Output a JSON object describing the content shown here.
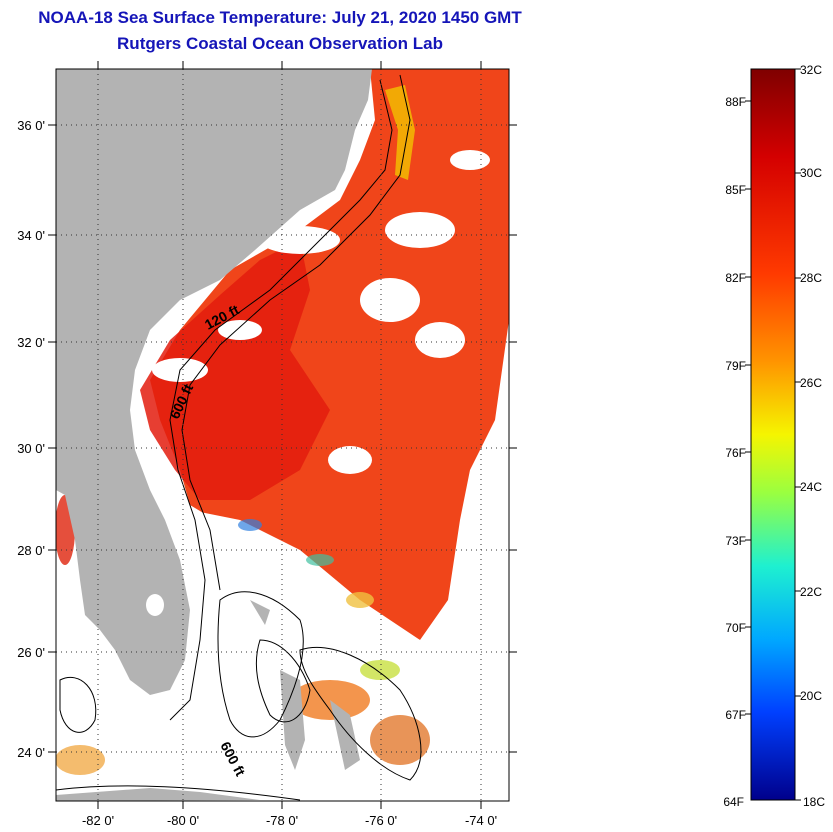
{
  "header": {
    "title": "NOAA-18 Sea Surface Temperature:  July 21, 2020 1450 GMT",
    "subtitle": "Rutgers Coastal Ocean Observation Lab"
  },
  "map": {
    "lat_ticks": [
      "36 0'",
      "34 0'",
      "32 0'",
      "30 0'",
      "28 0'",
      "26 0'",
      "24 0'"
    ],
    "lon_ticks": [
      "-82 0'",
      "-80 0'",
      "-78 0'",
      "-76 0'",
      "-74 0'"
    ],
    "contour_labels": [
      "120 ft",
      "600 ft",
      "600 ft"
    ],
    "colors": {
      "land": "#b3b3b3",
      "clouds": "#ffffff",
      "sea_warm": "#f0451a",
      "sea_hot": "#e61e10"
    }
  },
  "colorbar": {
    "celsius_labels": [
      "32C",
      "30C",
      "28C",
      "26C",
      "24C",
      "22C",
      "20C",
      "18C"
    ],
    "fahrenheit_labels": [
      "88F",
      "85F",
      "82F",
      "79F",
      "76F",
      "73F",
      "70F",
      "67F",
      "64F"
    ],
    "range_c": [
      18,
      32
    ]
  }
}
